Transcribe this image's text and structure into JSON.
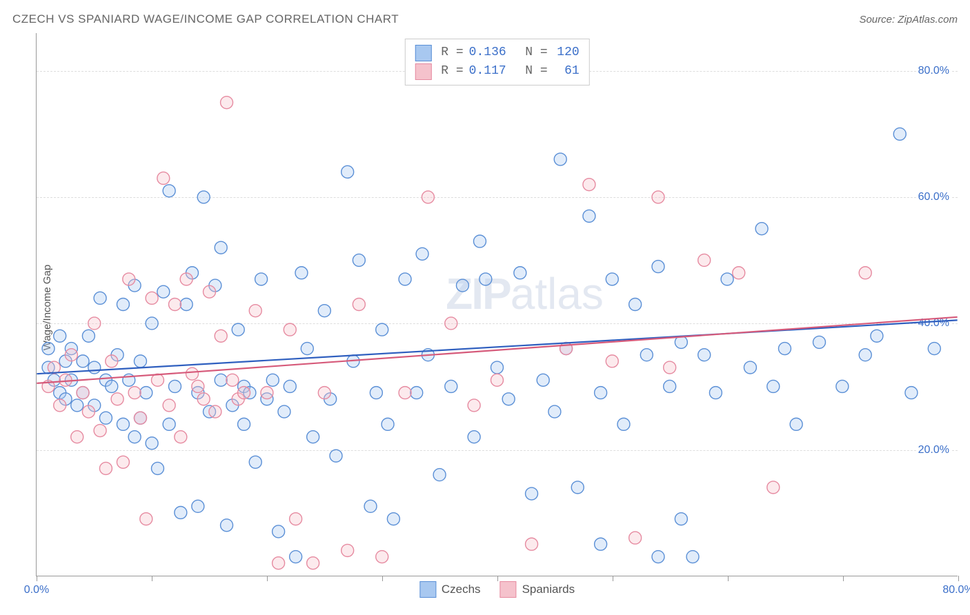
{
  "title": "CZECH VS SPANIARD WAGE/INCOME GAP CORRELATION CHART",
  "source_label": "Source: ZipAtlas.com",
  "ylabel": "Wage/Income Gap",
  "watermark": {
    "bold": "ZIP",
    "light": "atlas"
  },
  "chart": {
    "type": "scatter",
    "xlim": [
      0,
      80
    ],
    "ylim": [
      0,
      86
    ],
    "x_ticks": [
      0,
      10,
      20,
      30,
      40,
      50,
      60,
      70,
      80
    ],
    "x_tick_labels": {
      "0": "0.0%",
      "80": "80.0%"
    },
    "y_gridlines": [
      20,
      40,
      60,
      80
    ],
    "y_tick_labels": {
      "20": "20.0%",
      "40": "40.0%",
      "60": "60.0%",
      "80": "80.0%"
    },
    "marker_radius": 9,
    "marker_fill_opacity": 0.35,
    "marker_stroke_width": 1.4,
    "background_color": "#ffffff",
    "grid_color": "#dddddd",
    "axis_color": "#999999",
    "series": [
      {
        "name": "Czechs",
        "color_fill": "#a8c8f0",
        "color_stroke": "#5a8fd6",
        "trend_color": "#2f5fbf",
        "trend": {
          "y_at_x0": 32,
          "y_at_xmax": 40.5
        },
        "R": "0.136",
        "N": "120",
        "points": [
          [
            1,
            36
          ],
          [
            1,
            33
          ],
          [
            1.5,
            31
          ],
          [
            2,
            38
          ],
          [
            2,
            29
          ],
          [
            2.5,
            34
          ],
          [
            2.5,
            28
          ],
          [
            3,
            36
          ],
          [
            3,
            31
          ],
          [
            3.5,
            27
          ],
          [
            4,
            34
          ],
          [
            4,
            29
          ],
          [
            4.5,
            38
          ],
          [
            5,
            33
          ],
          [
            5,
            27
          ],
          [
            5.5,
            44
          ],
          [
            6,
            31
          ],
          [
            6,
            25
          ],
          [
            6.5,
            30
          ],
          [
            7,
            35
          ],
          [
            7.5,
            43
          ],
          [
            7.5,
            24
          ],
          [
            8,
            31
          ],
          [
            8.5,
            46
          ],
          [
            8.5,
            22
          ],
          [
            9,
            25
          ],
          [
            9,
            34
          ],
          [
            9.5,
            29
          ],
          [
            10,
            21
          ],
          [
            10,
            40
          ],
          [
            10.5,
            17
          ],
          [
            11,
            45
          ],
          [
            11.5,
            61
          ],
          [
            11.5,
            24
          ],
          [
            12,
            30
          ],
          [
            12.5,
            10
          ],
          [
            13,
            43
          ],
          [
            13.5,
            48
          ],
          [
            14,
            29
          ],
          [
            14,
            11
          ],
          [
            14.5,
            60
          ],
          [
            15,
            26
          ],
          [
            15.5,
            46
          ],
          [
            16,
            31
          ],
          [
            16,
            52
          ],
          [
            16.5,
            8
          ],
          [
            17,
            27
          ],
          [
            17.5,
            39
          ],
          [
            18,
            30
          ],
          [
            18,
            24
          ],
          [
            18.5,
            29
          ],
          [
            19,
            18
          ],
          [
            19.5,
            47
          ],
          [
            20,
            28
          ],
          [
            20.5,
            31
          ],
          [
            21,
            7
          ],
          [
            21.5,
            26
          ],
          [
            22,
            30
          ],
          [
            22.5,
            3
          ],
          [
            23,
            48
          ],
          [
            23.5,
            36
          ],
          [
            24,
            22
          ],
          [
            25,
            42
          ],
          [
            25.5,
            28
          ],
          [
            26,
            19
          ],
          [
            27,
            64
          ],
          [
            27.5,
            34
          ],
          [
            28,
            50
          ],
          [
            29,
            11
          ],
          [
            29.5,
            29
          ],
          [
            30,
            39
          ],
          [
            30.5,
            24
          ],
          [
            31,
            9
          ],
          [
            32,
            47
          ],
          [
            33,
            29
          ],
          [
            33.5,
            51
          ],
          [
            34,
            35
          ],
          [
            35,
            16
          ],
          [
            36,
            30
          ],
          [
            37,
            46
          ],
          [
            38,
            22
          ],
          [
            38.5,
            53
          ],
          [
            40,
            33
          ],
          [
            41,
            28
          ],
          [
            42,
            48
          ],
          [
            43,
            13
          ],
          [
            44,
            31
          ],
          [
            45,
            26
          ],
          [
            45.5,
            66
          ],
          [
            46,
            36
          ],
          [
            47,
            14
          ],
          [
            48,
            57
          ],
          [
            49,
            29
          ],
          [
            50,
            47
          ],
          [
            51,
            24
          ],
          [
            52,
            43
          ],
          [
            53,
            35
          ],
          [
            54,
            49
          ],
          [
            55,
            30
          ],
          [
            56,
            37
          ],
          [
            56,
            9
          ],
          [
            57,
            3
          ],
          [
            58,
            35
          ],
          [
            59,
            29
          ],
          [
            60,
            47
          ],
          [
            62,
            33
          ],
          [
            63,
            55
          ],
          [
            64,
            30
          ],
          [
            65,
            36
          ],
          [
            66,
            24
          ],
          [
            68,
            37
          ],
          [
            70,
            30
          ],
          [
            72,
            35
          ],
          [
            73,
            38
          ],
          [
            75,
            70
          ],
          [
            76,
            29
          ],
          [
            78,
            36
          ],
          [
            54,
            3
          ],
          [
            49,
            5
          ],
          [
            39,
            47
          ]
        ]
      },
      {
        "name": "Spaniards",
        "color_fill": "#f5c2cc",
        "color_stroke": "#e68aa0",
        "trend_color": "#d65a7a",
        "trend": {
          "y_at_x0": 30.5,
          "y_at_xmax": 41
        },
        "R": "0.117",
        "N": "61",
        "points": [
          [
            1,
            30
          ],
          [
            1.5,
            33
          ],
          [
            2,
            27
          ],
          [
            2.5,
            31
          ],
          [
            3,
            35
          ],
          [
            3.5,
            22
          ],
          [
            4,
            29
          ],
          [
            4.5,
            26
          ],
          [
            5,
            40
          ],
          [
            5.5,
            23
          ],
          [
            6,
            17
          ],
          [
            6.5,
            34
          ],
          [
            7,
            28
          ],
          [
            7.5,
            18
          ],
          [
            8,
            47
          ],
          [
            8.5,
            29
          ],
          [
            9,
            25
          ],
          [
            9.5,
            9
          ],
          [
            10,
            44
          ],
          [
            10.5,
            31
          ],
          [
            11,
            63
          ],
          [
            11.5,
            27
          ],
          [
            12,
            43
          ],
          [
            12.5,
            22
          ],
          [
            13,
            47
          ],
          [
            13.5,
            32
          ],
          [
            14,
            30
          ],
          [
            14.5,
            28
          ],
          [
            15,
            45
          ],
          [
            15.5,
            26
          ],
          [
            16,
            38
          ],
          [
            16.5,
            75
          ],
          [
            17,
            31
          ],
          [
            17.5,
            28
          ],
          [
            18,
            29
          ],
          [
            19,
            42
          ],
          [
            20,
            29
          ],
          [
            21,
            2
          ],
          [
            22,
            39
          ],
          [
            22.5,
            9
          ],
          [
            24,
            2
          ],
          [
            25,
            29
          ],
          [
            27,
            4
          ],
          [
            28,
            43
          ],
          [
            30,
            3
          ],
          [
            32,
            29
          ],
          [
            34,
            60
          ],
          [
            36,
            40
          ],
          [
            38,
            27
          ],
          [
            40,
            31
          ],
          [
            43,
            5
          ],
          [
            46,
            36
          ],
          [
            48,
            62
          ],
          [
            50,
            34
          ],
          [
            52,
            6
          ],
          [
            55,
            33
          ],
          [
            58,
            50
          ],
          [
            61,
            48
          ],
          [
            64,
            14
          ],
          [
            72,
            48
          ],
          [
            54,
            60
          ]
        ]
      }
    ]
  },
  "legend_bottom": [
    {
      "label": "Czechs",
      "fill": "#a8c8f0",
      "stroke": "#5a8fd6"
    },
    {
      "label": "Spaniards",
      "fill": "#f5c2cc",
      "stroke": "#e68aa0"
    }
  ]
}
